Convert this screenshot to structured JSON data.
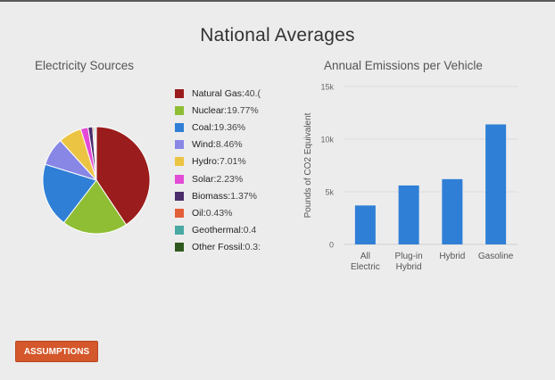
{
  "page": {
    "title": "National Averages",
    "assumptions_label": "ASSUMPTIONS"
  },
  "chart_data": [
    {
      "type": "pie",
      "title": "Electricity Sources",
      "slices": [
        {
          "name": "Natural Gas",
          "value": 40.6,
          "label": "40.("
        },
        {
          "name": "Nuclear",
          "value": 19.77,
          "label": "19.77%"
        },
        {
          "name": "Coal",
          "value": 19.36,
          "label": "19.36%"
        },
        {
          "name": "Wind",
          "value": 8.46,
          "label": "8.46%"
        },
        {
          "name": "Hydro",
          "value": 7.01,
          "label": "7.01%"
        },
        {
          "name": "Solar",
          "value": 2.23,
          "label": "2.23%"
        },
        {
          "name": "Biomass",
          "value": 1.37,
          "label": "1.37%"
        },
        {
          "name": "Oil",
          "value": 0.43,
          "label": "0.43%"
        },
        {
          "name": "Geothermal",
          "value": 0.4,
          "label": "0.4"
        },
        {
          "name": "Other Fossil",
          "value": 0.3,
          "label": "0.3:"
        }
      ],
      "colors": [
        "#9b1c1c",
        "#8fbe35",
        "#2f7fd6",
        "#8887e6",
        "#ecc443",
        "#e34ad6",
        "#4a2c6b",
        "#e35f3a",
        "#4aa9a2",
        "#2f5a1f"
      ],
      "legend_position": "right"
    },
    {
      "type": "bar",
      "title": "Annual Emissions per Vehicle",
      "categories": [
        [
          "All",
          "Electric"
        ],
        [
          "Plug-in",
          "Hybrid"
        ],
        [
          "Hybrid"
        ],
        [
          "Gasoline"
        ]
      ],
      "values": [
        3700,
        5600,
        6200,
        11400
      ],
      "ylabel": "Pounds of CO2 Equivalent",
      "ylim": [
        0,
        15000
      ],
      "yticks": [
        0,
        5000,
        10000,
        15000
      ],
      "ytick_labels": [
        "0",
        "5k",
        "10k",
        "15k"
      ],
      "grid": true,
      "color": "#2f7fd6"
    }
  ]
}
